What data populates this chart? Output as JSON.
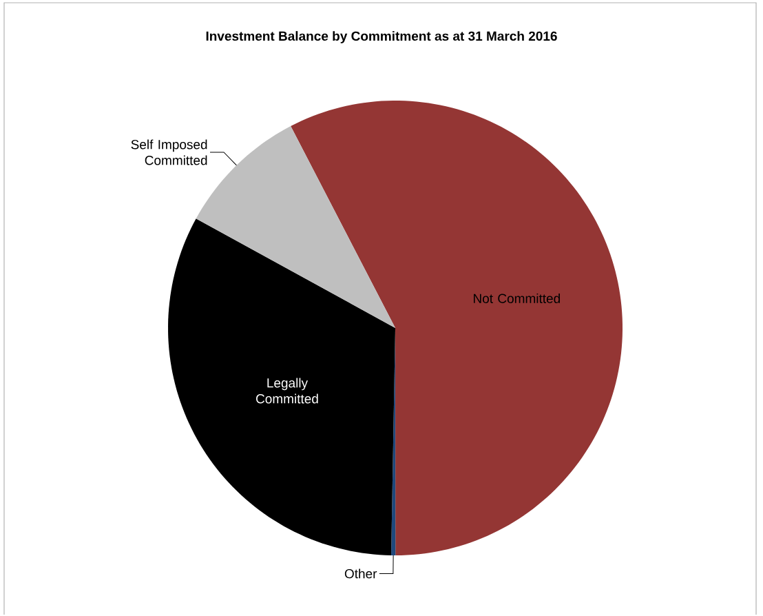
{
  "chart_data": {
    "type": "pie",
    "title": "Investment  Balance by Commitment as at 31 March 2016",
    "categories": [
      "Not Committed",
      "Other",
      "Legally Committed",
      "Self Imposed Committed"
    ],
    "values": [
      57.6,
      0.3,
      32.7,
      9.4
    ],
    "colors": [
      "#943634",
      "#1f497d",
      "#000000",
      "#bfbfbf"
    ]
  }
}
